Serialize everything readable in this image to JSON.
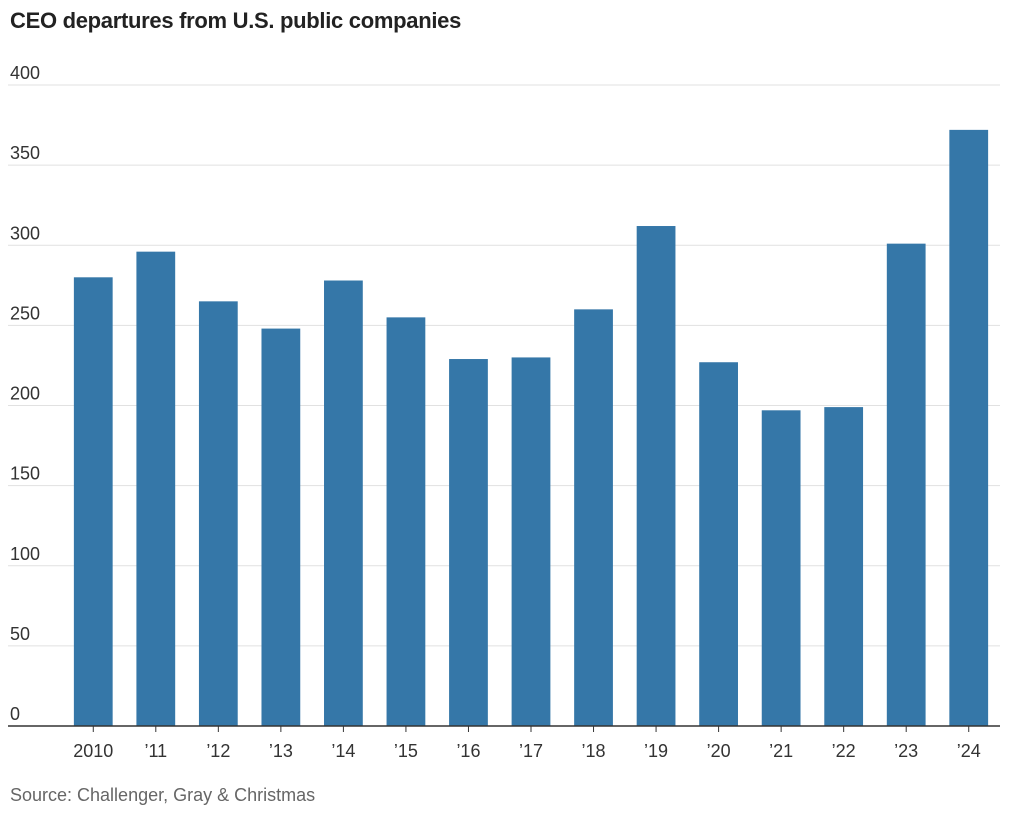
{
  "chart_data": {
    "type": "bar",
    "title": "CEO departures from U.S. public companies",
    "categories": [
      "2010",
      "’11",
      "’12",
      "’13",
      "’14",
      "’15",
      "’16",
      "’17",
      "’18",
      "’19",
      "’20",
      "’21",
      "’22",
      "’23",
      "’24"
    ],
    "values": [
      280,
      296,
      265,
      248,
      278,
      255,
      229,
      230,
      260,
      312,
      227,
      197,
      199,
      301,
      372
    ],
    "ylim": [
      0,
      400
    ],
    "yticks": [
      0,
      50,
      100,
      150,
      200,
      250,
      300,
      350,
      400
    ],
    "xlabel": "",
    "ylabel": "",
    "grid": true,
    "bar_color": "#3577a8",
    "source": "Source: Challenger, Gray & Christmas"
  }
}
